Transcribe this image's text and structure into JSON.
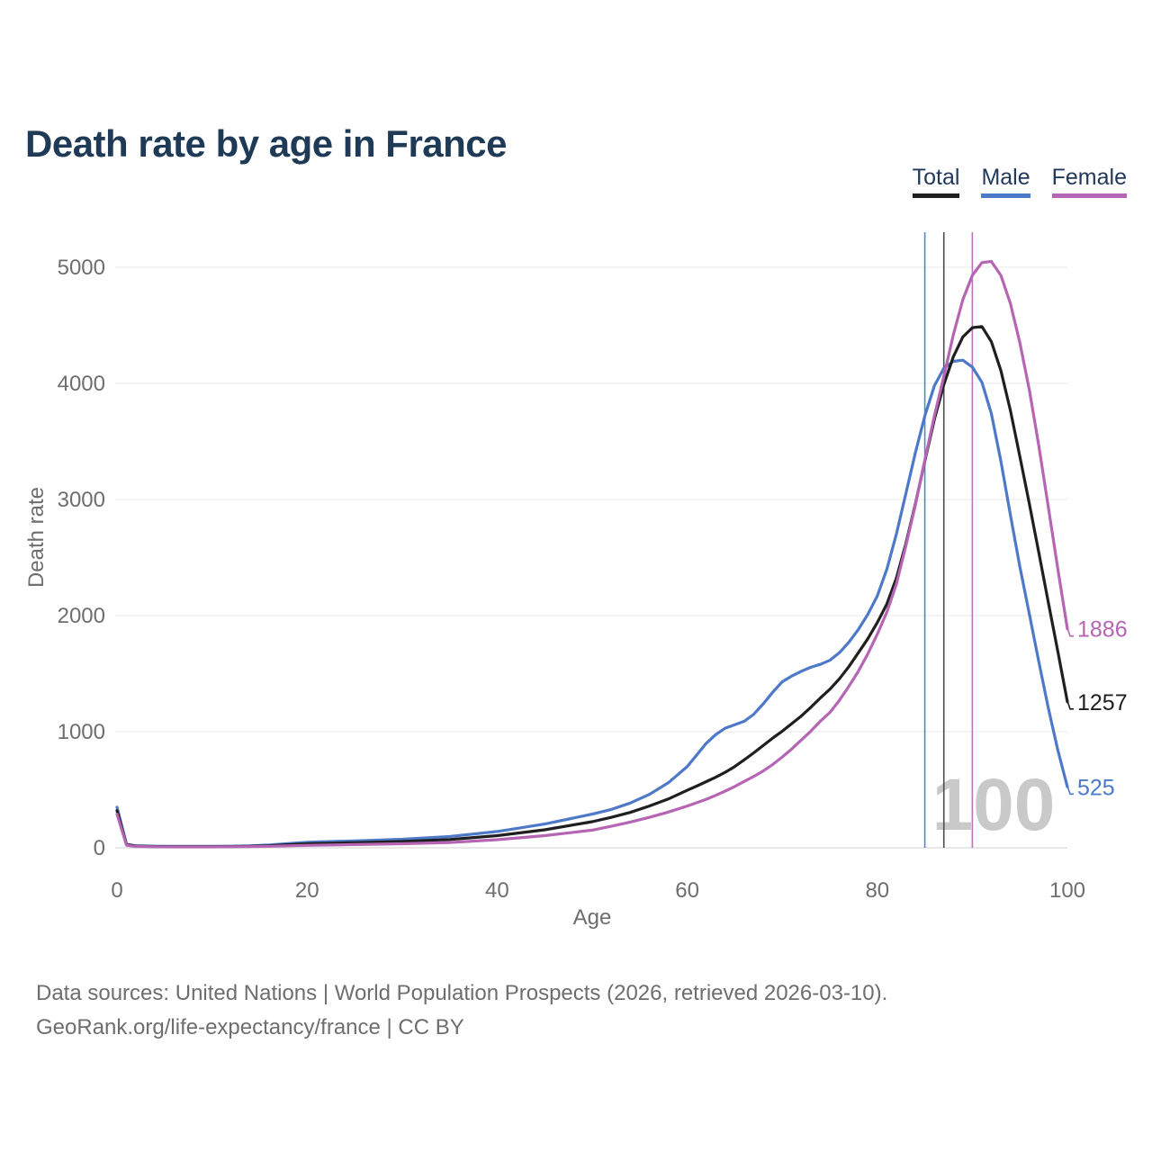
{
  "header": {
    "title": "Death rate by age in France",
    "title_color": "#1e3a56"
  },
  "legend": {
    "items": [
      {
        "label": "Total",
        "color": "#1f1f1f"
      },
      {
        "label": "Male",
        "color": "#4d79c8"
      },
      {
        "label": "Female",
        "color": "#b565b3"
      }
    ]
  },
  "chart_data": {
    "type": "line",
    "title": "Death rate by age in France",
    "xlabel": "Age",
    "ylabel": "Death rate",
    "xlim": [
      0,
      100
    ],
    "ylim": [
      0,
      5300
    ],
    "xticks": [
      0,
      20,
      40,
      60,
      80,
      100
    ],
    "yticks": [
      0,
      1000,
      2000,
      3000,
      4000,
      5000
    ],
    "grid": true,
    "legend_position": "top-right",
    "watermark": "100",
    "ages": [
      0,
      1,
      2,
      4,
      6,
      8,
      10,
      12,
      14,
      16,
      18,
      20,
      25,
      30,
      35,
      40,
      45,
      50,
      52,
      54,
      56,
      58,
      60,
      61,
      62,
      63,
      64,
      65,
      66,
      67,
      68,
      69,
      70,
      71,
      72,
      73,
      74,
      75,
      76,
      77,
      78,
      79,
      80,
      81,
      82,
      83,
      84,
      85,
      86,
      87,
      88,
      89,
      90,
      91,
      92,
      93,
      94,
      95,
      96,
      97,
      98,
      99,
      100
    ],
    "series": [
      {
        "name": "Total",
        "color": "#1f1f1f",
        "end_label": "1257",
        "values": [
          320,
          26,
          15,
          11,
          10,
          10,
          10,
          11,
          13,
          18,
          26,
          34,
          44,
          54,
          71,
          105,
          155,
          225,
          262,
          305,
          360,
          420,
          495,
          532,
          570,
          608,
          650,
          700,
          758,
          818,
          882,
          945,
          1005,
          1070,
          1135,
          1210,
          1290,
          1365,
          1455,
          1560,
          1680,
          1800,
          1940,
          2100,
          2320,
          2620,
          2960,
          3330,
          3690,
          3990,
          4230,
          4400,
          4480,
          4490,
          4360,
          4110,
          3770,
          3370,
          2960,
          2540,
          2110,
          1690,
          1257
        ]
      },
      {
        "name": "Male",
        "color": "#4d79c8",
        "end_label": "525",
        "values": [
          350,
          30,
          18,
          14,
          13,
          13,
          13,
          14,
          17,
          24,
          36,
          48,
          60,
          74,
          97,
          140,
          205,
          290,
          330,
          385,
          460,
          560,
          700,
          800,
          900,
          975,
          1030,
          1060,
          1090,
          1150,
          1240,
          1340,
          1430,
          1480,
          1520,
          1555,
          1580,
          1615,
          1680,
          1770,
          1880,
          2010,
          2170,
          2400,
          2700,
          3050,
          3400,
          3720,
          3980,
          4130,
          4190,
          4200,
          4140,
          4010,
          3740,
          3330,
          2870,
          2420,
          2010,
          1600,
          1200,
          840,
          525
        ]
      },
      {
        "name": "Female",
        "color": "#b565b3",
        "end_label": "1886",
        "values": [
          290,
          22,
          12,
          9,
          8,
          8,
          8,
          9,
          10,
          13,
          17,
          21,
          28,
          35,
          46,
          70,
          105,
          152,
          185,
          222,
          262,
          308,
          360,
          388,
          418,
          452,
          488,
          528,
          572,
          615,
          662,
          718,
          782,
          852,
          928,
          1005,
          1090,
          1165,
          1270,
          1390,
          1520,
          1670,
          1840,
          2030,
          2270,
          2600,
          2950,
          3340,
          3720,
          4060,
          4420,
          4720,
          4930,
          5040,
          5050,
          4930,
          4690,
          4350,
          3940,
          3460,
          2930,
          2400,
          1886
        ]
      }
    ],
    "vertical_markers": [
      {
        "series": "Male",
        "age": 85,
        "color": "#5583cf"
      },
      {
        "series": "Total",
        "age": 87,
        "color": "#4d4d4d"
      },
      {
        "series": "Female",
        "age": 90,
        "color": "#bc71bd"
      }
    ],
    "axis_color": "#6e6e6e",
    "gridline_color": "#ededed",
    "baseline_color": "#d9d9d9",
    "watermark_color": "#c9c9c9"
  },
  "footer": {
    "line1": "Data sources: United Nations | World Population Prospects (2026, retrieved 2026-03-10).",
    "line2": "GeoRank.org/life-expectancy/france | CC BY"
  }
}
